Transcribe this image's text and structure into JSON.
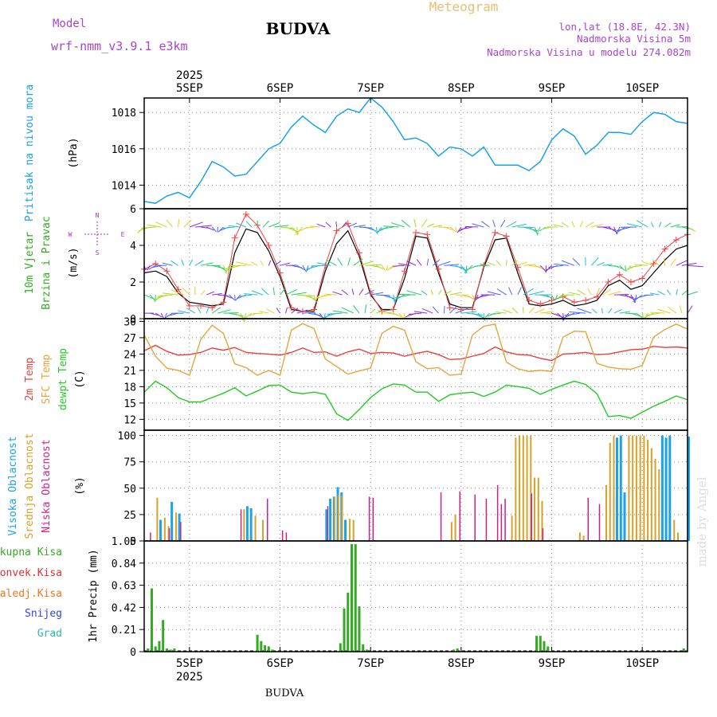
{
  "header": {
    "model_label": "Model",
    "model_name": "wrf-nmm_v3.9.1 e3km",
    "station": "BUDVA",
    "meteogram": "Meteogram",
    "lonlat": "lon,lat (18.8E, 42.3N)",
    "elevation": "Nadmorska Visina 5m",
    "model_elevation": "Nadmorska Visina u modelu 274.082m"
  },
  "footer": {
    "station": "BUDVA",
    "credit": "made by Angel"
  },
  "time_axis": {
    "year": "2025",
    "days": [
      "5SEP",
      "6SEP",
      "7SEP",
      "8SEP",
      "9SEP",
      "10SEP"
    ],
    "start_hour": 0,
    "end_hour": 144
  },
  "colors": {
    "pressure": "#1aa3e8",
    "temp2m": "#e8413c",
    "sfc": "#e8a33c",
    "dew": "#22cc22",
    "high_cloud": "#1aa3e8",
    "mid_cloud": "#d9a12a",
    "low_cloud": "#cc2288",
    "total_precip": "#33aa22",
    "conv_precip": "#dd3333",
    "frz_precip": "#ee7722",
    "snow": "#3344dd",
    "graupel": "#22bbaa",
    "wind_line": "#000000",
    "gust_marker": "#ee4444",
    "compass": "#aa33cc",
    "title_purple": "#aa44cc",
    "meteogram_orange": "#e8c070"
  },
  "chart_data": [
    {
      "type": "line",
      "title": "Pritisak na nivou mora",
      "ylabel": "(hPa)",
      "ylim": [
        1012.7,
        1018.8
      ],
      "yticks": [
        1014,
        1016,
        1018
      ],
      "series": [
        {
          "name": "MSLP",
          "x": [
            0,
            3,
            6,
            9,
            12,
            15,
            18,
            21,
            24,
            27,
            30,
            33,
            36,
            39,
            42,
            45,
            48,
            51,
            54,
            57,
            60,
            63,
            66,
            69,
            72,
            75,
            78,
            81,
            84,
            87,
            90,
            93,
            96,
            99,
            102,
            105,
            108,
            111,
            114,
            117,
            120,
            123,
            126,
            129,
            132,
            135,
            138,
            141,
            144
          ],
          "values": [
            1013.1,
            1013.0,
            1013.4,
            1013.6,
            1013.3,
            1014.2,
            1015.3,
            1015.0,
            1014.5,
            1014.6,
            1015.3,
            1016.0,
            1016.3,
            1017.2,
            1017.8,
            1017.3,
            1016.9,
            1017.8,
            1018.2,
            1018.0,
            1018.8,
            1018.3,
            1017.5,
            1016.5,
            1016.6,
            1016.3,
            1015.6,
            1016.1,
            1016.0,
            1015.6,
            1016.1,
            1015.1,
            1015.1,
            1015.1,
            1014.8,
            1015.3,
            1016.5,
            1017.1,
            1016.7,
            1015.7,
            1016.2,
            1016.9,
            1016.9,
            1016.8,
            1017.5,
            1018.0,
            1017.9,
            1017.5,
            1017.4
          ]
        }
      ]
    },
    {
      "type": "line",
      "title": "10m Vjetar Brzina i Pravac",
      "ylabel": "(m/s)",
      "ylim": [
        0,
        6
      ],
      "yticks": [
        0,
        2,
        4,
        6
      ],
      "compass_label": "N / S / W / E",
      "series": [
        {
          "name": "Brzina",
          "x": [
            0,
            3,
            6,
            9,
            12,
            15,
            18,
            21,
            24,
            27,
            30,
            33,
            36,
            39,
            42,
            45,
            48,
            51,
            54,
            57,
            60,
            63,
            66,
            69,
            72,
            75,
            78,
            81,
            84,
            87,
            90,
            93,
            96,
            99,
            102,
            105,
            108,
            111,
            114,
            117,
            120,
            123,
            126,
            129,
            132,
            135,
            138,
            141,
            144
          ],
          "values": [
            2.5,
            2.6,
            2.3,
            1.4,
            0.9,
            0.8,
            0.7,
            0.8,
            3.6,
            4.9,
            4.7,
            3.7,
            2.3,
            0.5,
            0.4,
            0.4,
            2.6,
            4.1,
            4.8,
            3.4,
            1.3,
            0.5,
            0.5,
            2.2,
            4.5,
            4.4,
            2.5,
            0.8,
            0.6,
            0.6,
            2.8,
            4.3,
            4.4,
            2.5,
            0.8,
            0.7,
            0.8,
            1.0,
            0.7,
            0.8,
            1.0,
            1.8,
            2.1,
            1.6,
            1.8,
            2.5,
            3.2,
            3.8,
            4.0
          ]
        },
        {
          "name": "Udari",
          "x": [
            0,
            3,
            6,
            9,
            12,
            15,
            18,
            21,
            24,
            27,
            30,
            33,
            36,
            39,
            42,
            45,
            48,
            51,
            54,
            57,
            60,
            63,
            66,
            69,
            72,
            75,
            78,
            81,
            84,
            87,
            90,
            93,
            96,
            99,
            102,
            105,
            108,
            111,
            114,
            117,
            120,
            123,
            126,
            129,
            132,
            135,
            138,
            141,
            144
          ],
          "values": [
            2.7,
            3.0,
            2.6,
            1.6,
            0.7,
            0.7,
            0.6,
            0.9,
            4.4,
            5.7,
            5.1,
            4.0,
            2.5,
            0.6,
            0.4,
            0.5,
            2.9,
            4.8,
            5.2,
            3.6,
            1.4,
            0.4,
            0.5,
            2.6,
            4.7,
            4.6,
            2.7,
            0.6,
            0.5,
            0.5,
            2.9,
            4.7,
            4.5,
            2.8,
            1.0,
            0.8,
            1.0,
            1.2,
            0.9,
            1.0,
            1.2,
            2.0,
            2.4,
            2.0,
            2.2,
            3.0,
            3.8,
            4.3,
            4.6
          ]
        }
      ]
    },
    {
      "type": "line",
      "title": "2m Temp / SFC Temp / dewpt Temp",
      "ylabel": "(C)",
      "ylim": [
        10,
        30.5
      ],
      "yticks": [
        12,
        15,
        18,
        21,
        24,
        27,
        30
      ],
      "series": [
        {
          "name": "2m Temp",
          "x": [
            0,
            3,
            6,
            9,
            12,
            15,
            18,
            21,
            24,
            27,
            30,
            33,
            36,
            39,
            42,
            45,
            48,
            51,
            54,
            57,
            60,
            63,
            66,
            69,
            72,
            75,
            78,
            81,
            84,
            87,
            90,
            93,
            96,
            99,
            102,
            105,
            108,
            111,
            114,
            117,
            120,
            123,
            126,
            129,
            132,
            135,
            138,
            141,
            144
          ],
          "values": [
            24.6,
            25.6,
            24.5,
            23.8,
            23.9,
            24.3,
            25.1,
            24.7,
            25.2,
            24.3,
            24.1,
            24.0,
            23.8,
            24.3,
            25.1,
            24.3,
            24.4,
            23.6,
            24.4,
            24.9,
            24.1,
            24.3,
            24.2,
            23.6,
            24.1,
            24.5,
            23.9,
            23.0,
            23.1,
            23.6,
            24.1,
            25.3,
            24.4,
            23.9,
            23.8,
            23.2,
            22.8,
            24.0,
            24.1,
            24.3,
            23.9,
            24.0,
            24.4,
            24.8,
            24.9,
            25.4,
            25.2,
            25.3,
            25.1
          ]
        },
        {
          "name": "SFC Temp",
          "x": [
            0,
            3,
            6,
            9,
            12,
            15,
            18,
            21,
            24,
            27,
            30,
            33,
            36,
            39,
            42,
            45,
            48,
            51,
            54,
            57,
            60,
            63,
            66,
            69,
            72,
            75,
            78,
            81,
            84,
            87,
            90,
            93,
            96,
            99,
            102,
            105,
            108,
            111,
            114,
            117,
            120,
            123,
            126,
            129,
            132,
            135,
            138,
            141,
            144
          ],
          "values": [
            27.5,
            23.6,
            21.4,
            21.0,
            20.1,
            26.7,
            29.3,
            27.8,
            22.2,
            21.5,
            20.1,
            21.0,
            20.1,
            28.4,
            29.6,
            28.7,
            23.1,
            21.7,
            20.3,
            20.9,
            21.4,
            27.8,
            29.1,
            28.4,
            22.6,
            21.3,
            21.5,
            20.1,
            20.3,
            27.5,
            29.1,
            29.5,
            22.5,
            21.3,
            20.8,
            21.0,
            20.8,
            27.1,
            28.2,
            28.1,
            22.3,
            21.6,
            21.3,
            21.2,
            21.9,
            27.1,
            28.5,
            29.5,
            28.6
          ]
        },
        {
          "name": "dewpt Temp",
          "x": [
            0,
            3,
            6,
            9,
            12,
            15,
            18,
            21,
            24,
            27,
            30,
            33,
            36,
            39,
            42,
            45,
            48,
            51,
            54,
            57,
            60,
            63,
            66,
            69,
            72,
            75,
            78,
            81,
            84,
            87,
            90,
            93,
            96,
            99,
            102,
            105,
            108,
            111,
            114,
            117,
            120,
            123,
            126,
            129,
            132,
            135,
            138,
            141,
            144
          ],
          "values": [
            17.0,
            19.0,
            17.8,
            16.0,
            15.2,
            15.2,
            16.0,
            16.8,
            17.8,
            16.3,
            17.2,
            18.2,
            18.3,
            17.0,
            16.7,
            17.0,
            16.6,
            13.0,
            11.8,
            13.8,
            16.0,
            17.6,
            18.5,
            18.3,
            17.0,
            17.0,
            15.3,
            16.5,
            16.8,
            17.0,
            16.2,
            17.0,
            18.3,
            18.0,
            17.7,
            16.6,
            17.5,
            18.3,
            19.0,
            18.4,
            16.7,
            12.5,
            12.7,
            12.2,
            13.3,
            14.4,
            15.3,
            16.3,
            15.6
          ]
        }
      ]
    },
    {
      "type": "bar",
      "title": "Visoka Oblacnost / Srednja Oblacnost / Niska Oblacnost",
      "ylabel": "(%)",
      "ylim": [
        0,
        105
      ],
      "yticks": [
        0,
        25,
        50,
        75,
        100
      ],
      "series": [
        {
          "name": "Visoka Oblacnost",
          "x": [
            4,
            7,
            9,
            27,
            28,
            48,
            49,
            50,
            51,
            52,
            53,
            125,
            126,
            127,
            137,
            138,
            139,
            144
          ],
          "values": [
            20,
            37,
            26,
            33,
            31,
            30,
            40,
            42,
            51,
            46,
            20,
            98,
            100,
            46,
            100,
            98,
            100,
            99
          ]
        },
        {
          "name": "Srednja Oblacnost",
          "x": [
            3,
            5,
            6,
            8,
            26,
            29,
            31,
            50,
            51,
            52,
            54,
            55,
            81,
            82,
            97,
            98,
            99,
            100,
            101,
            102,
            103,
            104,
            105,
            115,
            116,
            122,
            123,
            124,
            128,
            129,
            130,
            131,
            132,
            133,
            134,
            135,
            136,
            140,
            141
          ],
          "values": [
            41,
            22,
            14,
            27,
            30,
            24,
            20,
            42,
            44,
            43,
            21,
            20,
            18,
            25,
            24,
            98,
            100,
            100,
            100,
            100,
            60,
            60,
            38,
            8,
            5,
            53,
            93,
            100,
            100,
            100,
            100,
            100,
            100,
            96,
            88,
            78,
            68,
            20,
            8
          ]
        },
        {
          "name": "Niska Oblacnost",
          "x": [
            1,
            6,
            9,
            25,
            32,
            36,
            37,
            48,
            59,
            60,
            78,
            83,
            87,
            90,
            93,
            94,
            95,
            102,
            105,
            117,
            120
          ],
          "values": [
            8,
            12,
            18,
            30,
            40,
            10,
            8,
            33,
            42,
            41,
            46,
            47,
            44,
            40,
            53,
            35,
            40,
            45,
            12,
            41,
            35
          ]
        }
      ]
    },
    {
      "type": "bar",
      "title": "1hr Precip",
      "ylabel": "1hr Precip (mm)",
      "ylim": [
        0,
        1.05
      ],
      "yticks": [
        0,
        0.21,
        0.42,
        0.63,
        0.84,
        1.05
      ],
      "legend": [
        "Ukupna Kisa",
        "Konvek.Kisa",
        "Zaledj.Kisa",
        "Snijeg",
        "Grad"
      ],
      "series": [
        {
          "name": "Ukupna Kisa",
          "x": [
            1,
            2,
            3,
            4,
            5,
            6,
            7,
            8,
            30,
            31,
            32,
            33,
            34,
            52,
            53,
            54,
            55,
            56,
            57,
            58,
            59,
            82,
            83,
            104,
            105,
            106,
            107,
            143
          ],
          "values": [
            0.03,
            0.6,
            0.05,
            0.1,
            0.3,
            0.03,
            0.02,
            0.03,
            0.16,
            0.1,
            0.06,
            0.05,
            0.02,
            0.08,
            0.41,
            0.56,
            1.02,
            1.02,
            0.43,
            0.07,
            0.02,
            0.02,
            0.03,
            0.15,
            0.15,
            0.1,
            0.05,
            0.03
          ]
        }
      ]
    }
  ],
  "panel_labels": {
    "pressure": [
      "Pritisak na nivou mora",
      "(hPa)"
    ],
    "wind": [
      "10m Vjetar",
      "Brzina i Pravac",
      "(m/s)"
    ],
    "compass": [
      "N",
      "S",
      "W",
      "E"
    ],
    "temp": [
      "2m Temp",
      "SFC Temp",
      "dewpt Temp",
      "(C)"
    ],
    "cloud": [
      "Visoka Oblacnost",
      "Srednja Oblacnost",
      "Niska Oblacnost",
      "(%)"
    ],
    "precip": [
      "Ukupna Kisa",
      "Konvek.Kisa",
      "Zaledj.Kisa",
      "Snijeg",
      "Grad",
      "1hr Precip (mm)"
    ]
  }
}
